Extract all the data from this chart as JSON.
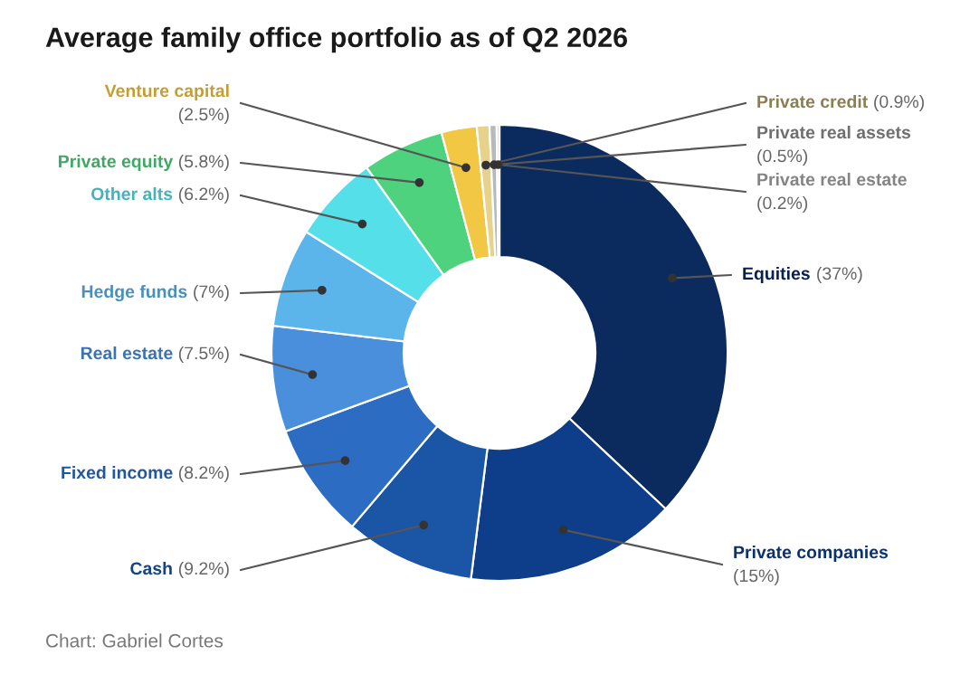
{
  "chart_data": {
    "type": "donut",
    "title": "Average family office portfolio as of Q2 2026",
    "categories": [
      "Equities",
      "Private companies",
      "Cash",
      "Fixed income",
      "Real estate",
      "Hedge funds",
      "Other alts",
      "Private equity",
      "Venture capital",
      "Private credit",
      "Private real assets",
      "Private real estate"
    ],
    "values": [
      37,
      15,
      9.2,
      8.2,
      7.5,
      7,
      6.2,
      5.8,
      2.5,
      0.9,
      0.5,
      0.2
    ],
    "value_labels": [
      "(37%)",
      "(15%)",
      "(9.2%)",
      "(8.2%)",
      "(7.5%)",
      "(7%)",
      "(6.2%)",
      "(5.8%)",
      "(2.5%)",
      "(0.9%)",
      "(0.5%)",
      "(0.2%)"
    ],
    "colors": [
      "#0b2b5e",
      "#0e3d8a",
      "#1a55a6",
      "#2c6cc2",
      "#4a8fdb",
      "#5bb4ea",
      "#55dfe9",
      "#4fd27d",
      "#f2c744",
      "#e6d28a",
      "#b9b9b9",
      "#dcdcdc"
    ],
    "annotations": [
      "Chart: Gabriel Cortes"
    ]
  }
}
